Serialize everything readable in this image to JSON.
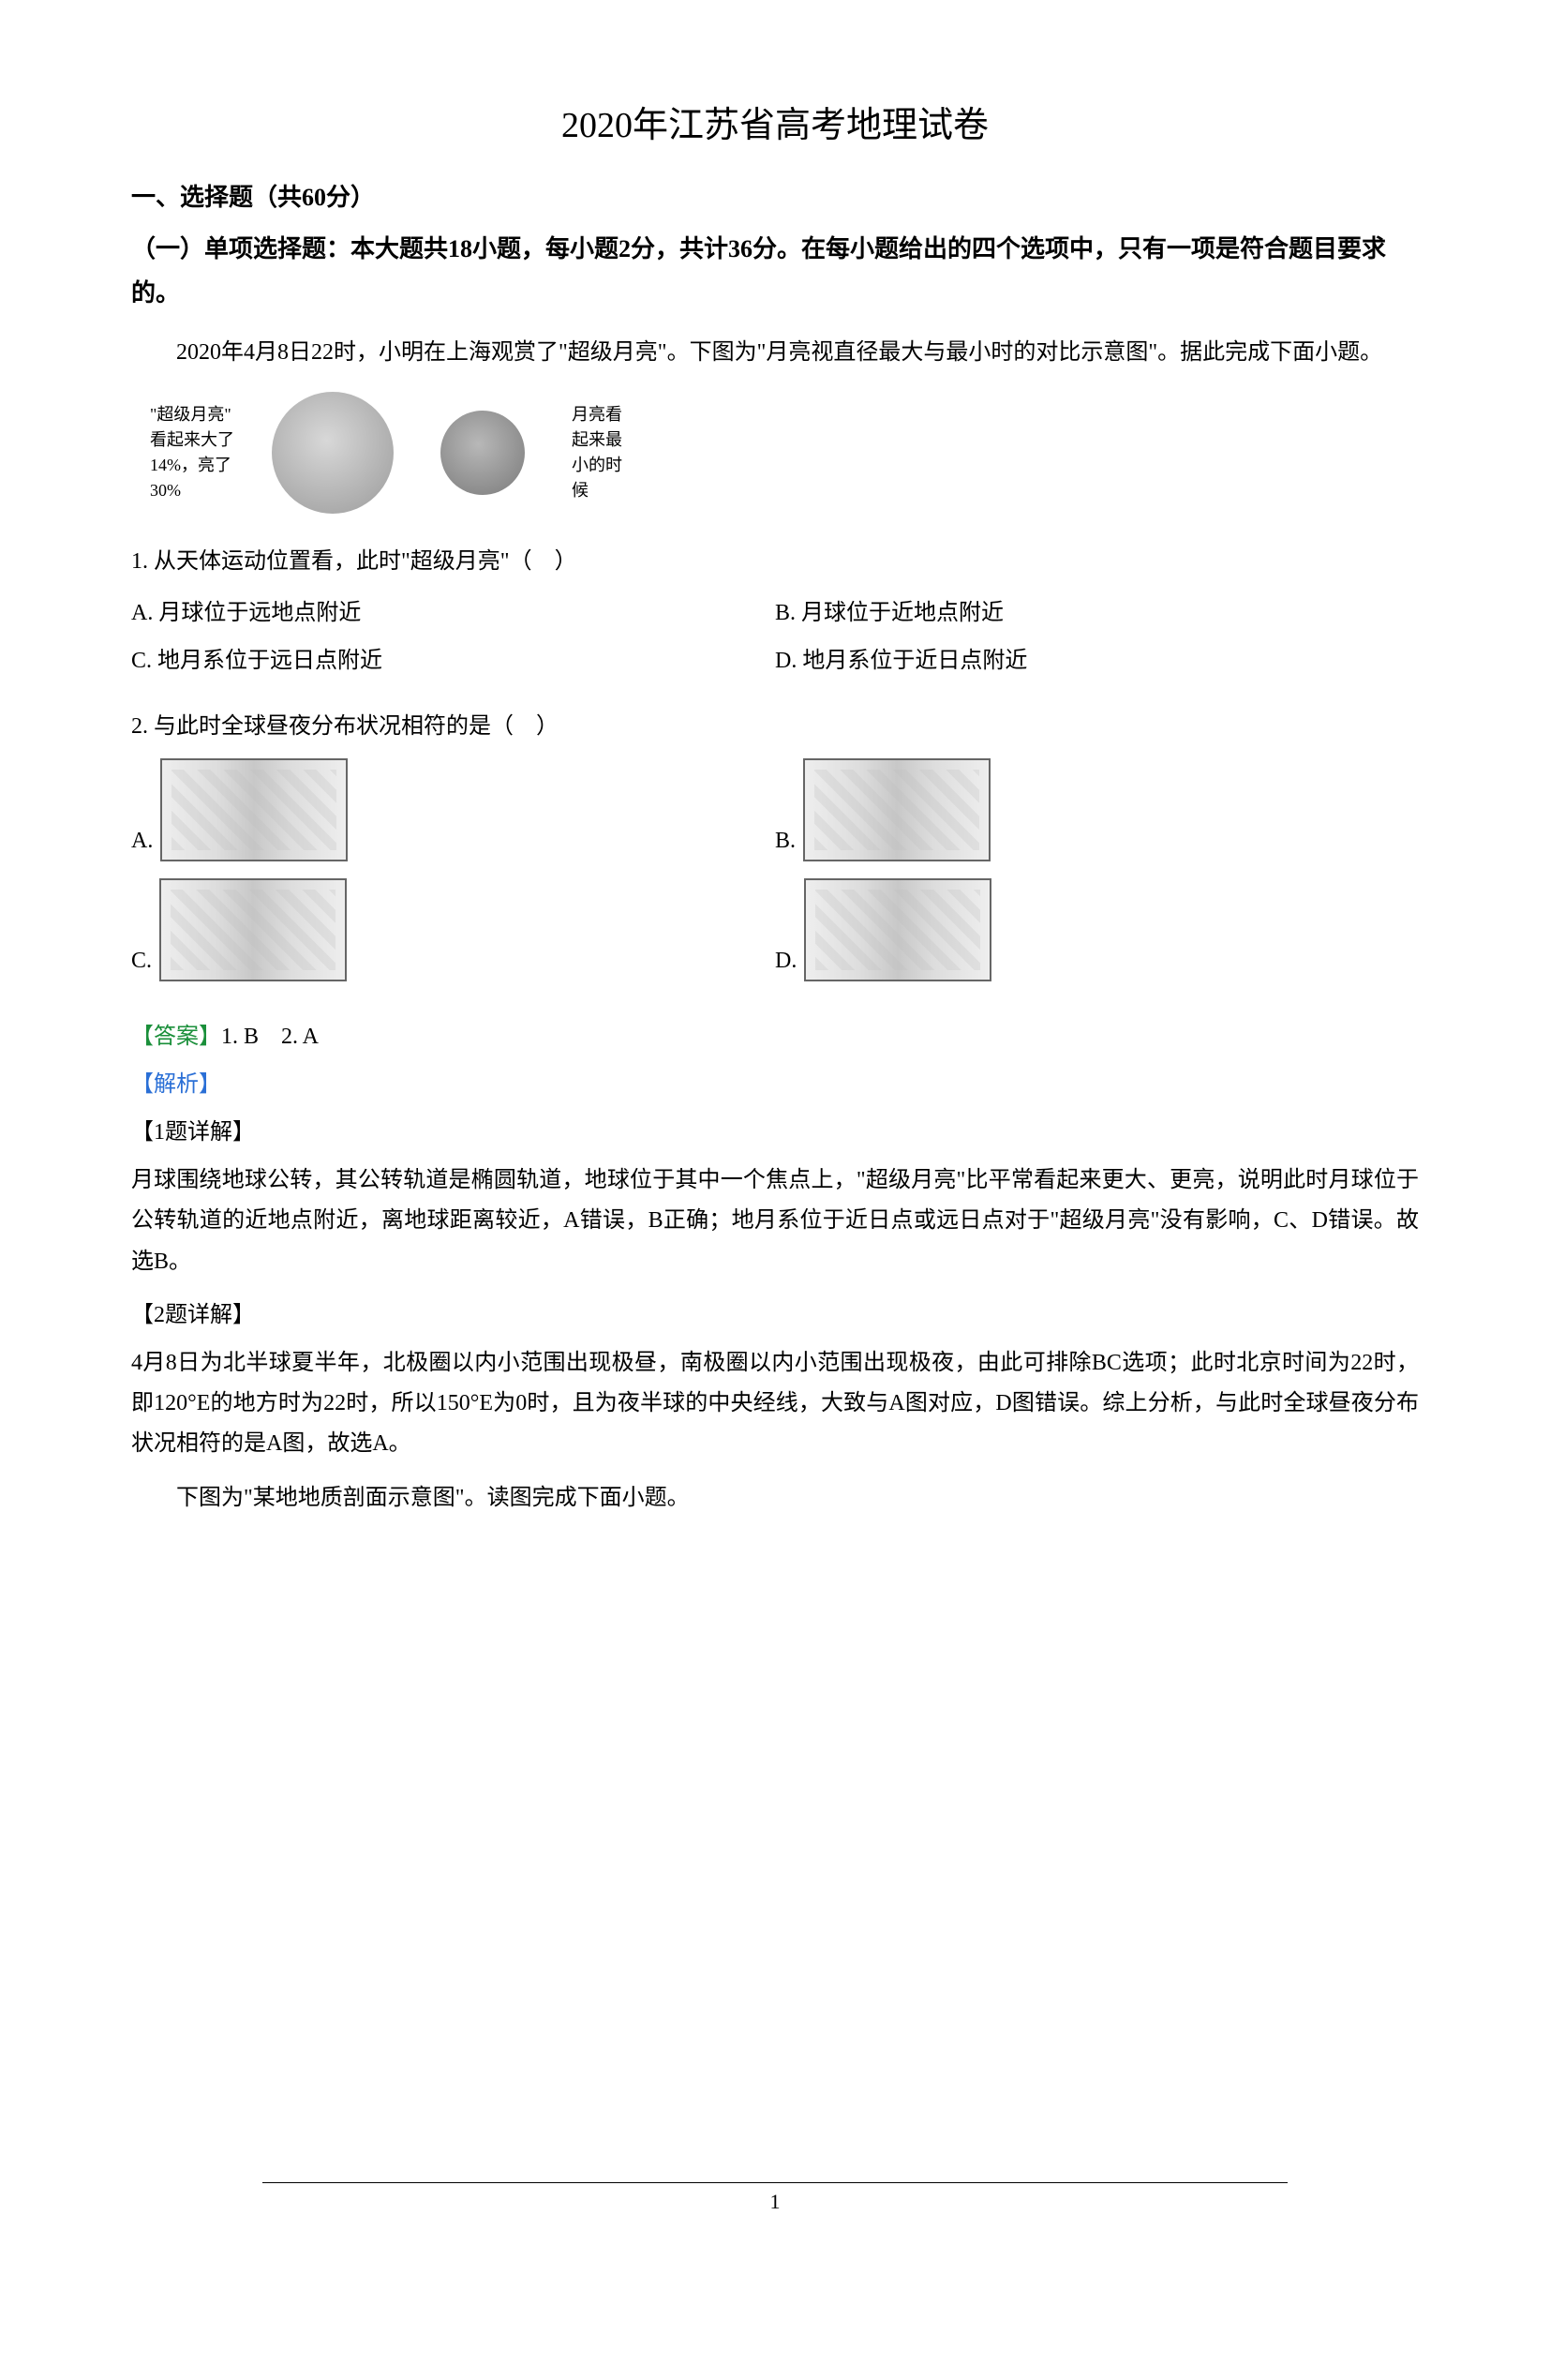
{
  "title": "2020年江苏省高考地理试卷",
  "section_heading": "一、选择题（共60分）",
  "sub_heading": "（一）单项选择题：本大题共18小题，每小题2分，共计36分。在每小题给出的四个选项中，只有一项是符合题目要求的。",
  "context_1": "2020年4月8日22时，小明在上海观赏了\"超级月亮\"。下图为\"月亮视直径最大与最小时的对比示意图\"。据此完成下面小题。",
  "moon_figure": {
    "left_label_l1": "\"超级月亮\"",
    "left_label_l2": "看起来大了",
    "left_label_l3": "14%，亮了",
    "left_label_l4": "30%",
    "right_label_l1": "月亮看",
    "right_label_l2": "起来最",
    "right_label_l3": "小的时",
    "right_label_l4": "候",
    "big_color": "#c0c0c0",
    "small_color": "#9a9a9a"
  },
  "q1": {
    "stem": "1. 从天体运动位置看，此时\"超级月亮\"（　）",
    "A": "A. 月球位于远地点附近",
    "B": "B. 月球位于近地点附近",
    "C": "C. 地月系位于远日点附近",
    "D": "D. 地月系位于近日点附近"
  },
  "q2": {
    "stem": "2. 与此时全球昼夜分布状况相符的是（　）",
    "A": "A.",
    "B": "B.",
    "C": "C.",
    "D": "D."
  },
  "answer": {
    "label": "【答案】",
    "text": "1. B　2. A"
  },
  "analysis_label": "【解析】",
  "q1_detail_head": "【1题详解】",
  "q1_detail": "月球围绕地球公转，其公转轨道是椭圆轨道，地球位于其中一个焦点上，\"超级月亮\"比平常看起来更大、更亮，说明此时月球位于公转轨道的近地点附近，离地球距离较近，A错误，B正确；地月系位于近日点或远日点对于\"超级月亮\"没有影响，C、D错误。故选B。",
  "q2_detail_head": "【2题详解】",
  "q2_detail": "4月8日为北半球夏半年，北极圈以内小范围出现极昼，南极圈以内小范围出现极夜，由此可排除BC选项；此时北京时间为22时，即120°E的地方时为22时，所以150°E为0时，且为夜半球的中央经线，大致与A图对应，D图错误。综上分析，与此时全球昼夜分布状况相符的是A图，故选A。",
  "context_2": "下图为\"某地地质剖面示意图\"。读图完成下面小题。",
  "page_number": "1",
  "colors": {
    "answer_label": "#1a8f3a",
    "analysis_label": "#2a6fd6",
    "text": "#000000",
    "background": "#ffffff"
  }
}
